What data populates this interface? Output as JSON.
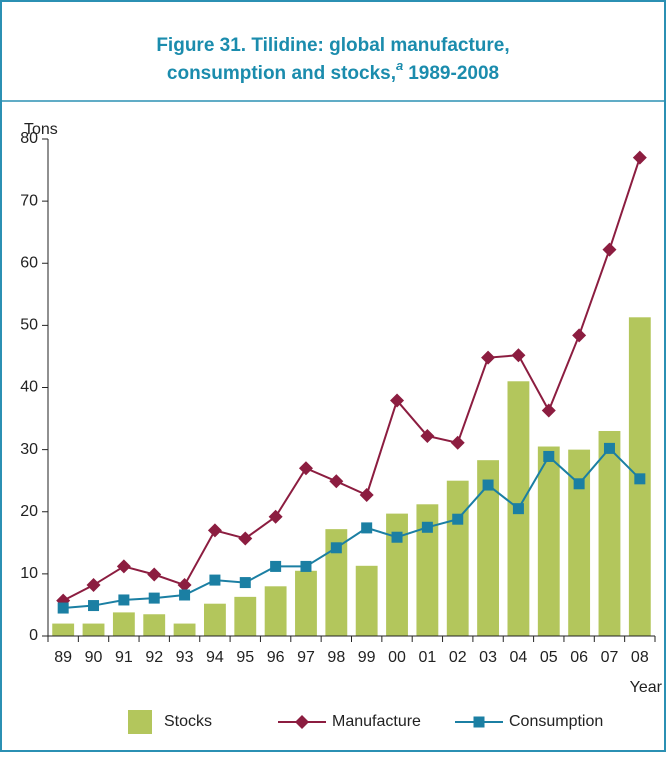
{
  "chart_data": {
    "type": "bar-line",
    "title_lines": [
      "Figure 31.   Tilidine: global manufacture,",
      "consumption and stocks,"
    ],
    "title_marker": "a",
    "title_end": "1989-2008",
    "y_label": "Tons",
    "x_label": "Year",
    "categories": [
      "89",
      "90",
      "91",
      "92",
      "93",
      "94",
      "95",
      "96",
      "97",
      "98",
      "99",
      "00",
      "01",
      "02",
      "03",
      "04",
      "05",
      "06",
      "07",
      "08"
    ],
    "series": [
      {
        "name": "Stocks",
        "type": "bar",
        "color": "#b3c65c",
        "values": [
          2,
          2,
          3.8,
          3.5,
          2,
          5.2,
          6.3,
          8,
          10.5,
          17.2,
          11.3,
          19.7,
          21.2,
          25,
          28.3,
          41,
          30.5,
          30,
          33,
          51.3
        ]
      },
      {
        "name": "Manufacture",
        "type": "line",
        "marker": "diamond",
        "color": "#8c1d40",
        "values": [
          5.7,
          8.2,
          11.2,
          9.9,
          8.2,
          17,
          15.7,
          19.2,
          27,
          24.9,
          22.7,
          37.9,
          32.2,
          31.1,
          44.8,
          45.2,
          36.3,
          48.4,
          62.2,
          77
        ]
      },
      {
        "name": "Consumption",
        "type": "line",
        "marker": "square",
        "color": "#1b7fa3",
        "values": [
          4.5,
          4.9,
          5.8,
          6.1,
          6.6,
          9,
          8.6,
          11.2,
          11.2,
          14.2,
          17.4,
          15.9,
          17.5,
          18.8,
          24.3,
          20.5,
          28.9,
          24.5,
          30.2,
          25.3
        ]
      }
    ],
    "ylim": [
      0,
      80
    ],
    "yticks": [
      0,
      10,
      20,
      30,
      40,
      50,
      60,
      70,
      80
    ],
    "grid": false,
    "legend": "bottom"
  }
}
